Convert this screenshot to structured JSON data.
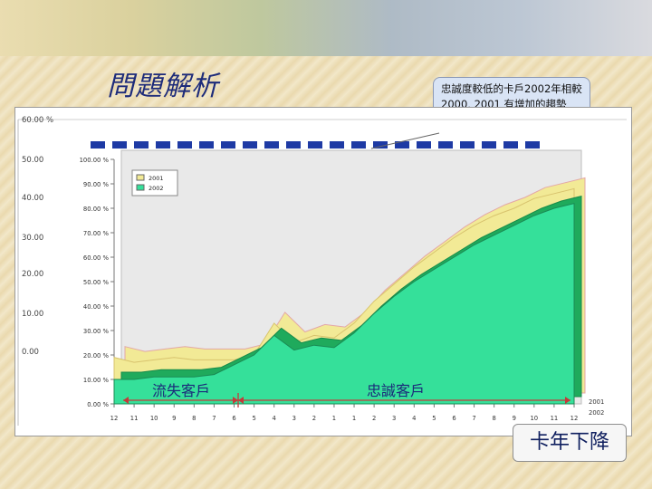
{
  "slide": {
    "title": "問題解析"
  },
  "callout": {
    "text": "忠誠度較低的卡戶2002年相較 2000, 2001 有增加的趨勢"
  },
  "chart_data": {
    "type": "area",
    "x": [
      "12",
      "11",
      "10",
      "9",
      "8",
      "7",
      "6",
      "5",
      "4",
      "3",
      "2",
      "1",
      "1",
      "2",
      "3",
      "4",
      "5",
      "6",
      "7",
      "8",
      "9",
      "10",
      "11",
      "12"
    ],
    "ylim": [
      0,
      100
    ],
    "y_ticks": [
      "0.00 %",
      "10.00 %",
      "20.00 %",
      "30.00 %",
      "40.00 %",
      "50.00 %",
      "60.00 %",
      "70.00 %",
      "80.00 %",
      "90.00 %",
      "100.00 %"
    ],
    "legend": [
      "2001",
      "2002"
    ],
    "series": [
      {
        "name": "2001",
        "values": [
          19,
          17,
          18,
          19,
          18,
          18,
          18,
          20,
          33,
          25,
          28,
          27,
          33,
          42,
          49,
          56,
          62,
          68,
          73,
          77,
          80,
          84,
          86,
          88
        ],
        "color": "#f2ea96"
      },
      {
        "name": "2002",
        "values": [
          10,
          10,
          11,
          11,
          11,
          12,
          16,
          20,
          28,
          22,
          24,
          23,
          29,
          37,
          44,
          50,
          55,
          60,
          65,
          69,
          73,
          77,
          80,
          82
        ],
        "color": "#35e09a"
      }
    ],
    "left_axis_partial_labels": [
      "60.00 %",
      "50.00",
      "40.00",
      "30.00",
      "20.00",
      "10.00",
      "0.00"
    ],
    "annotations": {
      "left": "流失客戶",
      "right": "忠誠客戶"
    },
    "depth_labels": [
      "2001",
      "2002"
    ]
  },
  "button": {
    "label": "卡年下降"
  }
}
